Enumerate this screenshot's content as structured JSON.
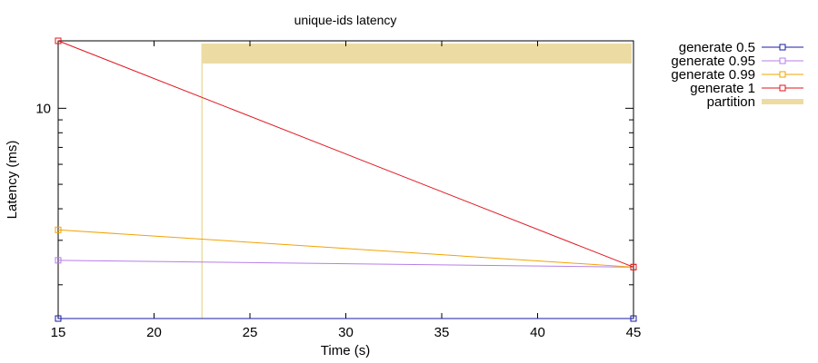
{
  "chart_data": {
    "type": "line",
    "title": "unique-ids latency",
    "xlabel": "Time (s)",
    "ylabel": "Latency (ms)",
    "x_scale": "linear",
    "y_scale": "log",
    "xlim": [
      15,
      45
    ],
    "ylim": [
      1.47,
      18.5
    ],
    "x_ticks": [
      15,
      20,
      25,
      30,
      35,
      40,
      45
    ],
    "y_tick_labels": [
      {
        "value": 10,
        "label": "10"
      }
    ],
    "legend_position": "outside-right",
    "grid": false,
    "series": [
      {
        "name": "generate 0.5",
        "color": "#1a1aa8",
        "marker": "square",
        "points": [
          [
            15,
            1.47
          ],
          [
            45,
            1.47
          ]
        ]
      },
      {
        "name": "generate 0.95",
        "color": "#b57fe8",
        "marker": "square",
        "points": [
          [
            15,
            2.5
          ],
          [
            45,
            2.35
          ]
        ]
      },
      {
        "name": "generate 0.99",
        "color": "#f2a300",
        "marker": "square",
        "points": [
          [
            15,
            3.3
          ],
          [
            45,
            2.35
          ]
        ]
      },
      {
        "name": "generate 1",
        "color": "#e0141e",
        "marker": "square",
        "points": [
          [
            15,
            18.5
          ],
          [
            45,
            2.35
          ]
        ]
      }
    ],
    "partitions": [
      {
        "name": "partition",
        "color": "#ecdca4",
        "start": 22.5,
        "end": 45
      }
    ]
  }
}
